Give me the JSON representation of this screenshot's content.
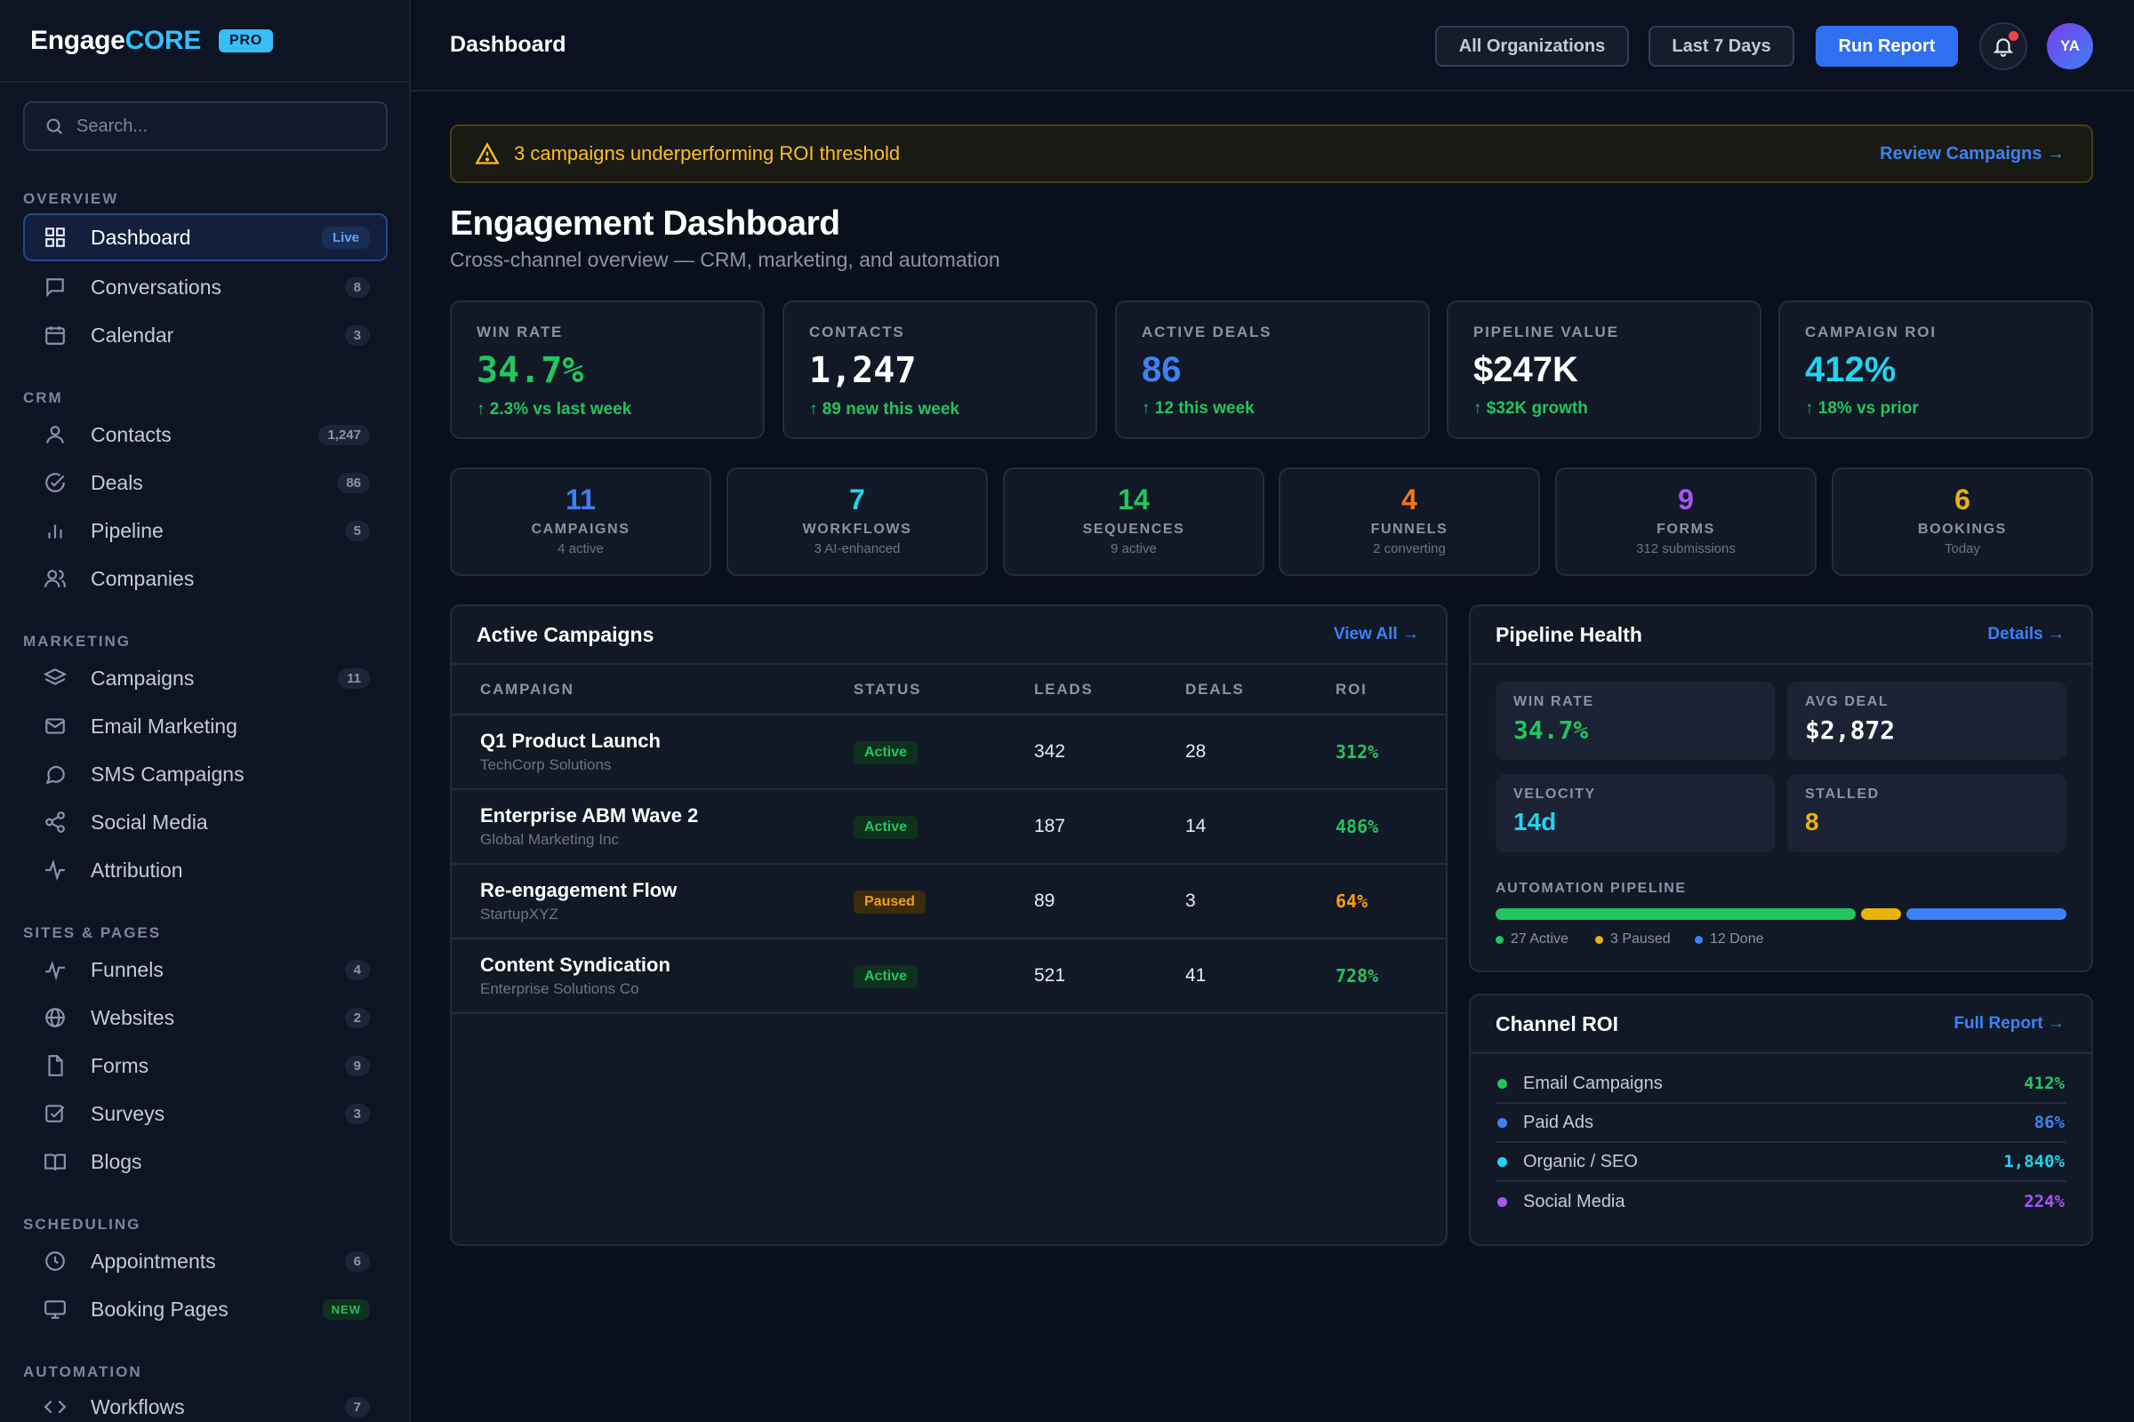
{
  "brand": {
    "name_prefix": "Engage",
    "name_suffix": "CORE",
    "badge": "PRO"
  },
  "search": {
    "placeholder": "Search..."
  },
  "sidebar": {
    "sections": [
      {
        "title": "OVERVIEW"
      },
      {
        "title": "CRM"
      },
      {
        "title": "MARKETING"
      },
      {
        "title": "SITES & PAGES"
      },
      {
        "title": "SCHEDULING"
      },
      {
        "title": "AUTOMATION"
      }
    ],
    "items": {
      "dashboard": {
        "label": "Dashboard",
        "badge": "Live",
        "icon": "grid-icon"
      },
      "conversations": {
        "label": "Conversations",
        "count": "8",
        "icon": "chat-icon"
      },
      "calendar": {
        "label": "Calendar",
        "count": "3",
        "icon": "calendar-icon"
      },
      "contacts": {
        "label": "Contacts",
        "count": "1,247",
        "icon": "user-icon"
      },
      "deals": {
        "label": "Deals",
        "count": "86",
        "icon": "check-circle-icon"
      },
      "pipeline": {
        "label": "Pipeline",
        "count": "5",
        "icon": "bar-chart-icon"
      },
      "companies": {
        "label": "Companies",
        "icon": "users-icon"
      },
      "campaigns": {
        "label": "Campaigns",
        "count": "11",
        "icon": "layers-icon"
      },
      "email_marketing": {
        "label": "Email Marketing",
        "icon": "mail-icon"
      },
      "sms_campaigns": {
        "label": "SMS Campaigns",
        "icon": "message-icon"
      },
      "social_media": {
        "label": "Social Media",
        "icon": "share-icon"
      },
      "attribution": {
        "label": "Attribution",
        "icon": "activity-icon"
      },
      "funnels": {
        "label": "Funnels",
        "count": "4",
        "icon": "pulse-icon"
      },
      "websites": {
        "label": "Websites",
        "count": "2",
        "icon": "globe-icon"
      },
      "forms": {
        "label": "Forms",
        "count": "9",
        "icon": "file-icon"
      },
      "surveys": {
        "label": "Surveys",
        "count": "3",
        "icon": "checkbox-icon"
      },
      "blogs": {
        "label": "Blogs",
        "icon": "book-icon"
      },
      "appointments": {
        "label": "Appointments",
        "count": "6",
        "icon": "clock-icon"
      },
      "booking_pages": {
        "label": "Booking Pages",
        "badge": "NEW",
        "icon": "monitor-icon"
      },
      "workflows": {
        "label": "Workflows",
        "count": "7",
        "icon": "code-icon"
      }
    }
  },
  "topbar": {
    "title": "Dashboard",
    "org_filter": "All Organizations",
    "date_filter": "Last 7 Days",
    "run_report": "Run Report",
    "avatar_initials": "YA"
  },
  "alert": {
    "message": "3 campaigns underperforming ROI threshold",
    "link": "Review Campaigns →"
  },
  "header": {
    "title": "Engagement Dashboard",
    "subtitle": "Cross-channel overview — CRM, marketing, and automation"
  },
  "kpis": [
    {
      "label": "WIN RATE",
      "value": "34.7%",
      "delta": "↑ 2.3% vs last week",
      "color": "#22c55e"
    },
    {
      "label": "CONTACTS",
      "value": "1,247",
      "delta": "↑ 89 new this week",
      "color": "#ffffff"
    },
    {
      "label": "ACTIVE DEALS",
      "value": "86",
      "delta": "↑ 12 this week",
      "color": "#3b82f6"
    },
    {
      "label": "PIPELINE VALUE",
      "value": "$247K",
      "delta": "↑ $32K growth",
      "color": "#ffffff"
    },
    {
      "label": "CAMPAIGN ROI",
      "value": "412%",
      "delta": "↑ 18% vs prior",
      "color": "#22d3ee"
    }
  ],
  "mini_stats": [
    {
      "value": "11",
      "label": "CAMPAIGNS",
      "sub": "4 active",
      "color": "#3b82f6"
    },
    {
      "value": "7",
      "label": "WORKFLOWS",
      "sub": "3 AI-enhanced",
      "color": "#22d3ee"
    },
    {
      "value": "14",
      "label": "SEQUENCES",
      "sub": "9 active",
      "color": "#22c55e"
    },
    {
      "value": "4",
      "label": "FUNNELS",
      "sub": "2 converting",
      "color": "#f97316"
    },
    {
      "value": "9",
      "label": "FORMS",
      "sub": "312 submissions",
      "color": "#a855f7"
    },
    {
      "value": "6",
      "label": "BOOKINGS",
      "sub": "Today",
      "color": "#eab308"
    }
  ],
  "campaigns": {
    "title": "Active Campaigns",
    "link": "View All →",
    "columns": [
      "CAMPAIGN",
      "STATUS",
      "LEADS",
      "DEALS",
      "ROI"
    ],
    "rows": [
      {
        "name": "Q1 Product Launch",
        "org": "TechCorp Solutions",
        "status": "Active",
        "leads": "342",
        "deals": "28",
        "roi": "312%"
      },
      {
        "name": "Enterprise ABM Wave 2",
        "org": "Global Marketing Inc",
        "status": "Active",
        "leads": "187",
        "deals": "14",
        "roi": "486%"
      },
      {
        "name": "Re-engagement Flow",
        "org": "StartupXYZ",
        "status": "Paused",
        "leads": "89",
        "deals": "3",
        "roi": "64%"
      },
      {
        "name": "Content Syndication",
        "org": "Enterprise Solutions Co",
        "status": "Active",
        "leads": "521",
        "deals": "41",
        "roi": "728%"
      }
    ]
  },
  "pipeline_health": {
    "title": "Pipeline Health",
    "link": "Details →",
    "stats": [
      {
        "label": "WIN RATE",
        "value": "34.7%",
        "color": "#22c55e"
      },
      {
        "label": "AVG DEAL",
        "value": "$2,872",
        "color": "#ffffff"
      },
      {
        "label": "VELOCITY",
        "value": "14d",
        "color": "#22d3ee"
      },
      {
        "label": "STALLED",
        "value": "8",
        "color": "#eab308"
      }
    ],
    "automation": {
      "label": "AUTOMATION PIPELINE",
      "active": 27,
      "paused": 3,
      "done": 12,
      "legend_active": "27 Active",
      "legend_paused": "3 Paused",
      "legend_done": "12 Done"
    }
  },
  "channel_roi": {
    "title": "Channel ROI",
    "link": "Full Report →",
    "rows": [
      {
        "label": "Email Campaigns",
        "value": "412%",
        "color": "#22c55e"
      },
      {
        "label": "Paid Ads",
        "value": "86%",
        "color": "#3b82f6"
      },
      {
        "label": "Organic / SEO",
        "value": "1,840%",
        "color": "#22d3ee"
      },
      {
        "label": "Social Media",
        "value": "224%",
        "color": "#a855f7"
      }
    ]
  }
}
